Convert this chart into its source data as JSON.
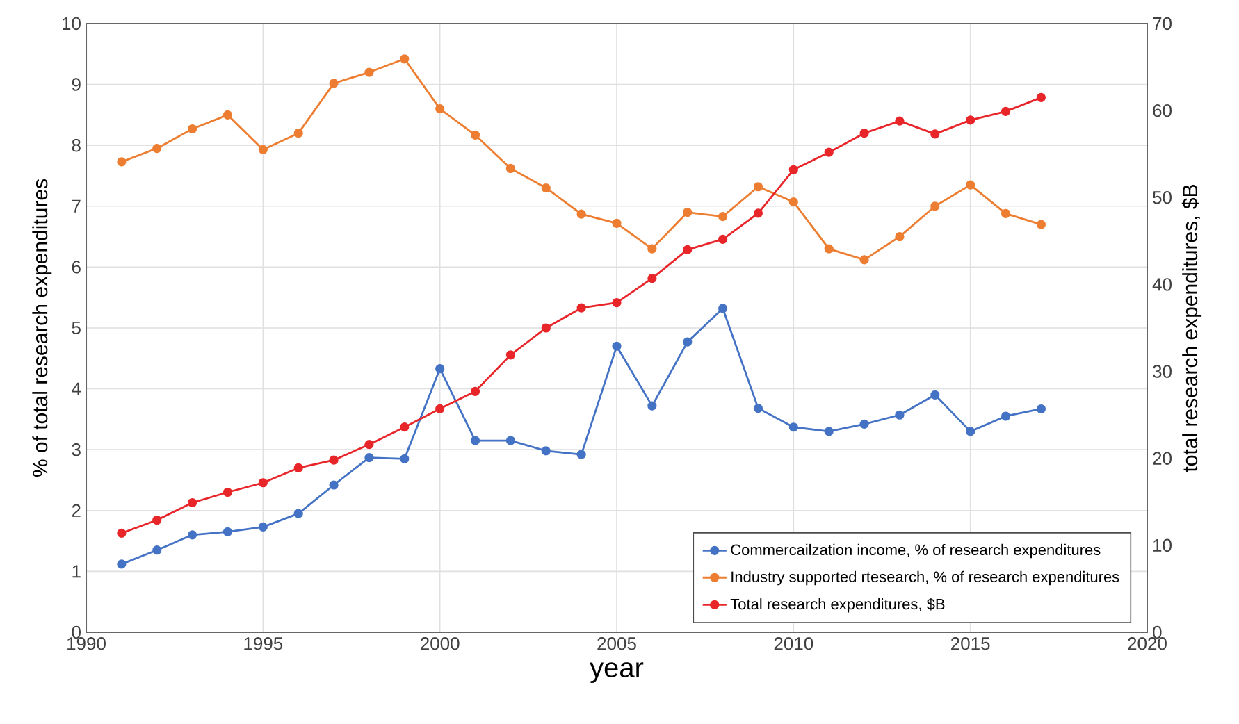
{
  "chart_data": {
    "type": "line",
    "xlabel": "year",
    "ylabel": "% of total research expenditures",
    "y2label": "total research expenditures, $B",
    "x": [
      1991,
      1992,
      1993,
      1994,
      1995,
      1996,
      1997,
      1998,
      1999,
      2000,
      2001,
      2002,
      2003,
      2004,
      2005,
      2006,
      2007,
      2008,
      2009,
      2010,
      2011,
      2012,
      2013,
      2014,
      2015,
      2016,
      2017
    ],
    "series": [
      {
        "name": "Commercailzation income, % of research expenditures",
        "color": "#4472c4",
        "values": [
          1.12,
          1.35,
          1.6,
          1.65,
          1.73,
          1.95,
          2.42,
          2.87,
          2.85,
          4.33,
          3.15,
          3.15,
          2.98,
          2.92,
          4.7,
          3.72,
          4.77,
          5.32,
          3.68,
          3.37,
          3.3,
          3.42,
          3.57,
          3.9,
          3.3,
          3.55,
          3.67
        ]
      },
      {
        "name": "Industry supported  rtesearch, % of research expenditures",
        "color": "#ed7d31",
        "values": [
          7.73,
          7.95,
          8.27,
          8.5,
          7.93,
          8.2,
          9.02,
          9.2,
          9.42,
          8.6,
          8.17,
          7.62,
          7.3,
          6.87,
          6.72,
          6.3,
          6.9,
          6.83,
          7.32,
          7.07,
          6.3,
          6.12,
          6.5,
          7.0,
          7.35,
          6.88,
          6.7
        ]
      },
      {
        "name": "Total research expenditures, $B",
        "color": "#e8262a",
        "axis": "y2",
        "values": [
          11.4,
          12.9,
          14.9,
          16.1,
          17.2,
          18.9,
          19.8,
          21.6,
          23.6,
          25.7,
          27.7,
          31.9,
          35.0,
          37.3,
          37.9,
          40.7,
          44.0,
          45.2,
          48.2,
          53.2,
          55.2,
          57.4,
          58.8,
          57.3,
          58.9,
          59.9,
          61.5
        ]
      }
    ],
    "xlim": [
      1990,
      2020
    ],
    "xticks": [
      1990,
      1995,
      2000,
      2005,
      2010,
      2015,
      2020
    ],
    "ylim": [
      0,
      10
    ],
    "yticks": [
      0,
      1,
      2,
      3,
      4,
      5,
      6,
      7,
      8,
      9,
      10
    ],
    "y2lim": [
      0,
      70
    ],
    "y2ticks": [
      0,
      10,
      20,
      30,
      40,
      50,
      60,
      70
    ],
    "grid": true,
    "legend": "bottom right",
    "marker": "circle",
    "line_style": "solid"
  }
}
